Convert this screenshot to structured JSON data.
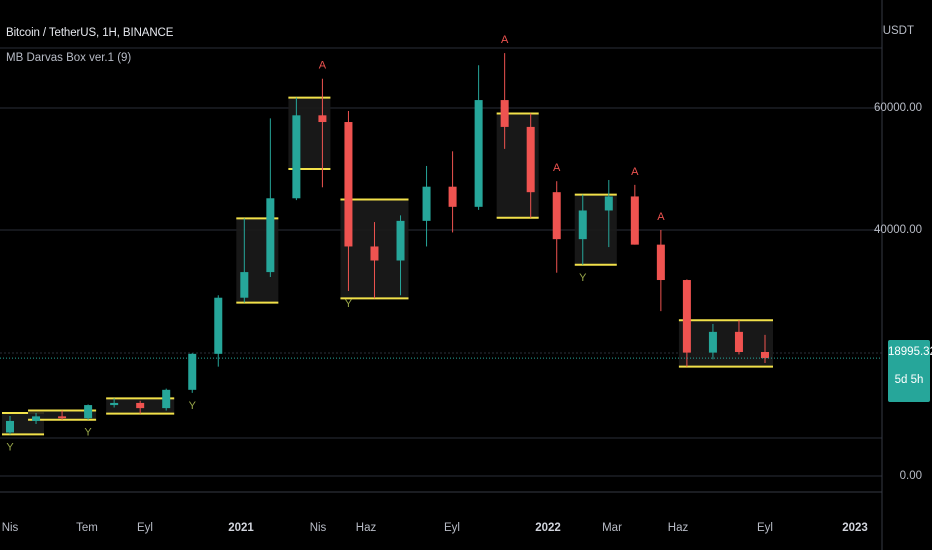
{
  "header": {
    "symbol_title": "Bitcoin / TetherUS, 1H, BINANCE",
    "indicator_title": "MB Darvas Box ver.1 (9)"
  },
  "axis": {
    "currency": "USDT",
    "y_ticks": [
      "60000.00",
      "40000.00",
      "0.00"
    ],
    "x_ticks": [
      "Nis",
      "Tem",
      "Eyl",
      "2021",
      "Nis",
      "Haz",
      "Eyl",
      "2022",
      "Mar",
      "Haz",
      "Eyl",
      "2023"
    ]
  },
  "price_tag": {
    "price": "18995.32",
    "countdown": "5d 5h"
  },
  "colors": {
    "background": "#000000",
    "up": "#26a69a",
    "down": "#ef5350",
    "box_line": "#f2e14a",
    "box_fill": "#1b1b1b",
    "grid": "#2a2e39",
    "signal_up": "#9aa84a",
    "signal_down": "#ef5350",
    "price_tag": "#26a69a"
  },
  "chart_data": {
    "type": "candlestick",
    "x": [
      "2020-04",
      "2020-05",
      "2020-06",
      "2020-07",
      "2020-08",
      "2020-09",
      "2020-10",
      "2020-11",
      "2020-12",
      "2021-01",
      "2021-02",
      "2021-03",
      "2021-04",
      "2021-05",
      "2021-06",
      "2021-07",
      "2021-08",
      "2021-09",
      "2021-10",
      "2021-11",
      "2021-12",
      "2022-01",
      "2022-02",
      "2022-03",
      "2022-04",
      "2022-05",
      "2022-06",
      "2022-07",
      "2022-08",
      "2022-09"
    ],
    "y_ticks": [
      60000,
      40000,
      0
    ],
    "last_price": 18995.32,
    "series": [
      {
        "values": [
          {
            "o": 6800,
            "h": 9500,
            "l": 6500,
            "c": 8700
          },
          {
            "o": 8700,
            "h": 10000,
            "l": 8200,
            "c": 9450
          },
          {
            "o": 9450,
            "h": 10400,
            "l": 8900,
            "c": 9150
          },
          {
            "o": 9150,
            "h": 11400,
            "l": 8900,
            "c": 11300
          },
          {
            "o": 11300,
            "h": 12400,
            "l": 10900,
            "c": 11650
          },
          {
            "o": 11650,
            "h": 12000,
            "l": 9900,
            "c": 10800
          },
          {
            "o": 10800,
            "h": 14000,
            "l": 10400,
            "c": 13800
          },
          {
            "o": 13800,
            "h": 19800,
            "l": 13300,
            "c": 19700
          },
          {
            "o": 19700,
            "h": 29300,
            "l": 17600,
            "c": 28900
          },
          {
            "o": 28900,
            "h": 41900,
            "l": 28100,
            "c": 33100
          },
          {
            "o": 33100,
            "h": 58300,
            "l": 32300,
            "c": 45200
          },
          {
            "o": 45200,
            "h": 61700,
            "l": 44900,
            "c": 58800
          },
          {
            "o": 58800,
            "h": 64800,
            "l": 47000,
            "c": 57700
          },
          {
            "o": 57700,
            "h": 59500,
            "l": 30000,
            "c": 37300
          },
          {
            "o": 37300,
            "h": 41300,
            "l": 28800,
            "c": 35000
          },
          {
            "o": 35000,
            "h": 42400,
            "l": 29300,
            "c": 41500
          },
          {
            "o": 41500,
            "h": 50500,
            "l": 37300,
            "c": 47100
          },
          {
            "o": 47100,
            "h": 52900,
            "l": 39600,
            "c": 43800
          },
          {
            "o": 43800,
            "h": 67000,
            "l": 43300,
            "c": 61300
          },
          {
            "o": 61300,
            "h": 69000,
            "l": 53300,
            "c": 56900
          },
          {
            "o": 56900,
            "h": 59100,
            "l": 42000,
            "c": 46200
          },
          {
            "o": 46200,
            "h": 48000,
            "l": 33000,
            "c": 38500
          },
          {
            "o": 38500,
            "h": 45800,
            "l": 34300,
            "c": 43200
          },
          {
            "o": 43200,
            "h": 48200,
            "l": 37200,
            "c": 45500
          },
          {
            "o": 45500,
            "h": 47400,
            "l": 37600,
            "c": 37600
          },
          {
            "o": 37600,
            "h": 40000,
            "l": 26700,
            "c": 31800
          },
          {
            "o": 31800,
            "h": 31900,
            "l": 17600,
            "c": 19900
          },
          {
            "o": 19900,
            "h": 24600,
            "l": 18800,
            "c": 23300
          },
          {
            "o": 23300,
            "h": 25200,
            "l": 19600,
            "c": 20000
          },
          {
            "o": 20000,
            "h": 22800,
            "l": 18200,
            "c": 19000
          }
        ]
      }
    ],
    "darvas_boxes": [
      {
        "from": "2020-04",
        "to": "2020-05",
        "top": 10000,
        "bottom": 6500
      },
      {
        "from": "2020-05",
        "to": "2020-07",
        "top": 10400,
        "bottom": 8900
      },
      {
        "from": "2020-08",
        "to": "2020-10",
        "top": 12400,
        "bottom": 9900
      },
      {
        "from": "2021-01",
        "to": "2021-02",
        "top": 41900,
        "bottom": 28100
      },
      {
        "from": "2021-03",
        "to": "2021-04",
        "top": 61700,
        "bottom": 50000
      },
      {
        "from": "2021-05",
        "to": "2021-07",
        "top": 45000,
        "bottom": 28800
      },
      {
        "from": "2021-11",
        "to": "2021-12",
        "top": 59100,
        "bottom": 42000
      },
      {
        "from": "2022-02",
        "to": "2022-03",
        "top": 45800,
        "bottom": 34300
      },
      {
        "from": "2022-06",
        "to": "2022-09",
        "top": 25200,
        "bottom": 17600
      }
    ],
    "signals": [
      {
        "x": "2021-04",
        "label": "A",
        "type": "sell"
      },
      {
        "x": "2021-11",
        "label": "A",
        "type": "sell"
      },
      {
        "x": "2022-01",
        "label": "A",
        "type": "sell"
      },
      {
        "x": "2022-04",
        "label": "A",
        "type": "sell"
      },
      {
        "x": "2022-05",
        "label": "A",
        "type": "sell"
      },
      {
        "x": "2020-04",
        "label": "Y",
        "type": "buy"
      },
      {
        "x": "2020-07",
        "label": "Y",
        "type": "buy"
      },
      {
        "x": "2020-11",
        "label": "Y",
        "type": "buy"
      },
      {
        "x": "2021-05",
        "label": "Y",
        "type": "buy"
      },
      {
        "x": "2022-02",
        "label": "Y",
        "type": "buy"
      }
    ]
  }
}
